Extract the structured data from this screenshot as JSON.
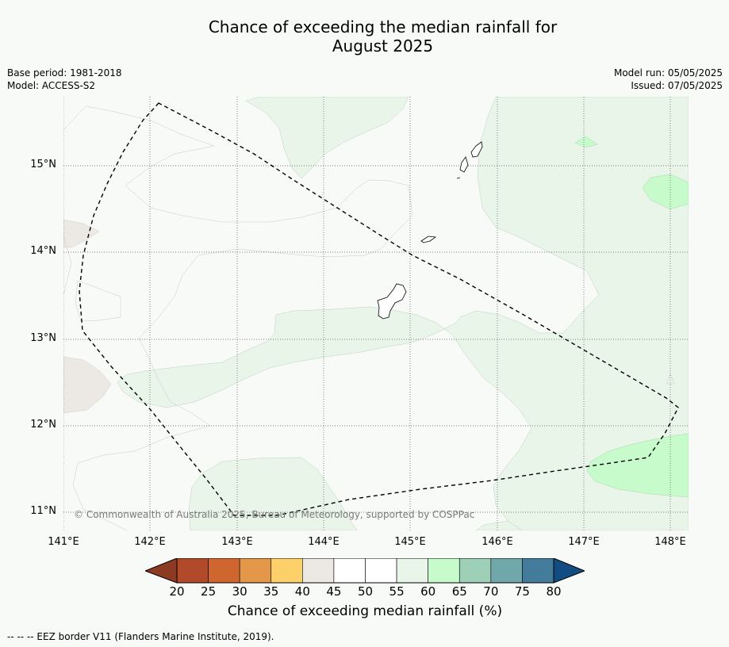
{
  "title_line1": "Chance of exceeding the median rainfall for",
  "title_line2": "August 2025",
  "base_period": "Base period: 1981-2018",
  "model": "Model: ACCESS-S2",
  "model_run": "Model run: 05/05/2025",
  "issued": "Issued: 07/05/2025",
  "lat_labels": [
    "15°N",
    "14°N",
    "13°N",
    "12°N",
    "11°N"
  ],
  "lon_labels": [
    "141°E",
    "142°E",
    "143°E",
    "144°E",
    "145°E",
    "146°E",
    "147°E",
    "148°E"
  ],
  "copyright": "© Commonwealth of Australia 2025, Bureau of Meteorology, supported by COSPPac",
  "colorbar": {
    "label": "Chance of exceeding median rainfall (%)",
    "ticks": [
      "20",
      "25",
      "30",
      "35",
      "40",
      "45",
      "50",
      "55",
      "60",
      "65",
      "70",
      "75",
      "80"
    ],
    "colors": [
      "#8c3a22",
      "#b04a2a",
      "#d0662f",
      "#e29848",
      "#fdd06a",
      "#ece9e4",
      "#ffffff",
      "#ffffff",
      "#e8f5e8",
      "#c8fbcc",
      "#9ed0b8",
      "#6fa7aa",
      "#437b9a",
      "#124c83"
    ]
  },
  "footer": "--  --  -- EEZ border V11 (Flanders Marine Institute, 2019).",
  "colors": {
    "background": "#f8faf7",
    "below_normal_40_45": "#ece9e4",
    "above_55_60": "#e8f5e8",
    "above_60_65": "#c8fbcc"
  }
}
